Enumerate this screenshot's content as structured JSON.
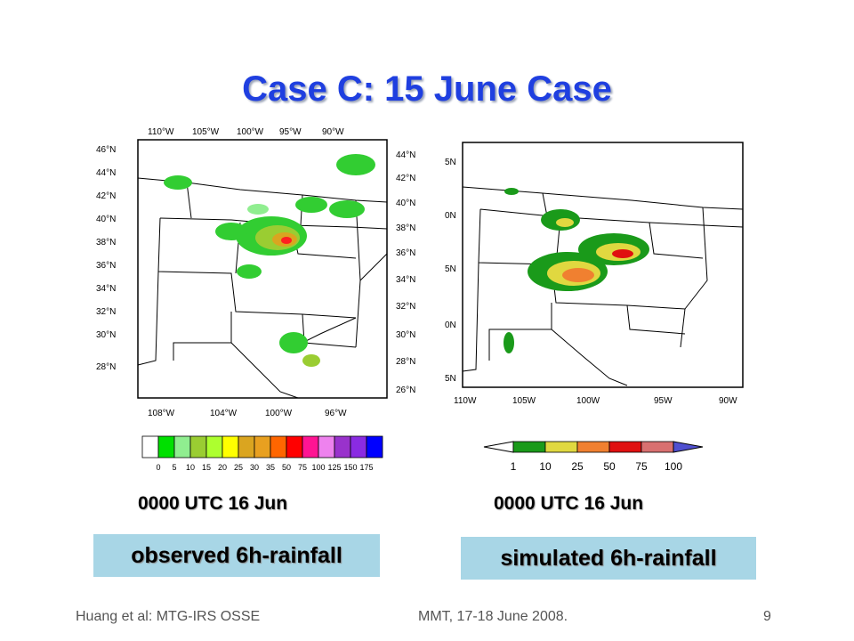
{
  "slide": {
    "title": "Case C: 15 June Case",
    "left_panel": {
      "time": "0000 UTC 16 Jun",
      "caption": "observed 6h-rainfall",
      "top_ticks": [
        "110°W",
        "105°W",
        "100°W",
        "95°W",
        "90°W"
      ],
      "bottom_ticks": [
        "108°W",
        "104°W",
        "100°W",
        "96°W"
      ],
      "left_ticks": [
        "46°N",
        "44°N",
        "42°N",
        "40°N",
        "38°N",
        "36°N",
        "34°N",
        "32°N",
        "30°N",
        "28°N"
      ],
      "right_ticks": [
        "44°N",
        "42°N",
        "40°N",
        "38°N",
        "36°N",
        "34°N",
        "32°N",
        "30°N",
        "28°N",
        "26°N"
      ],
      "colorbar": {
        "labels": [
          "0",
          "5",
          "10",
          "15",
          "20",
          "25",
          "30",
          "35",
          "50",
          "75",
          "100",
          "125",
          "150",
          "175"
        ],
        "colors": [
          "#ffffff",
          "#00e000",
          "#90ee90",
          "#9acd32",
          "#adff2f",
          "#ffff00",
          "#daa520",
          "#e8a020",
          "#ff6600",
          "#ff0000",
          "#ff1493",
          "#ee82ee",
          "#9932cc",
          "#8a2be2",
          "#0000ff"
        ]
      }
    },
    "right_panel": {
      "time": "0000 UTC 16 Jun",
      "caption": "simulated 6h-rainfall",
      "left_ticks": [
        "5N",
        "0N",
        "5N",
        "0N",
        "5N"
      ],
      "bottom_ticks": [
        "110W",
        "105W",
        "100W",
        "95W",
        "90W"
      ],
      "colorbar": {
        "labels": [
          "1",
          "10",
          "25",
          "50",
          "75",
          "100"
        ],
        "colors": [
          "#ffffff",
          "#1a9a1a",
          "#e0d840",
          "#f08030",
          "#e01010",
          "#d87070",
          "#5050d0"
        ]
      }
    },
    "footer": {
      "left": "Huang et al: MTG-IRS OSSE",
      "center": "MMT, 17-18 June 2008.",
      "page": "9"
    }
  }
}
